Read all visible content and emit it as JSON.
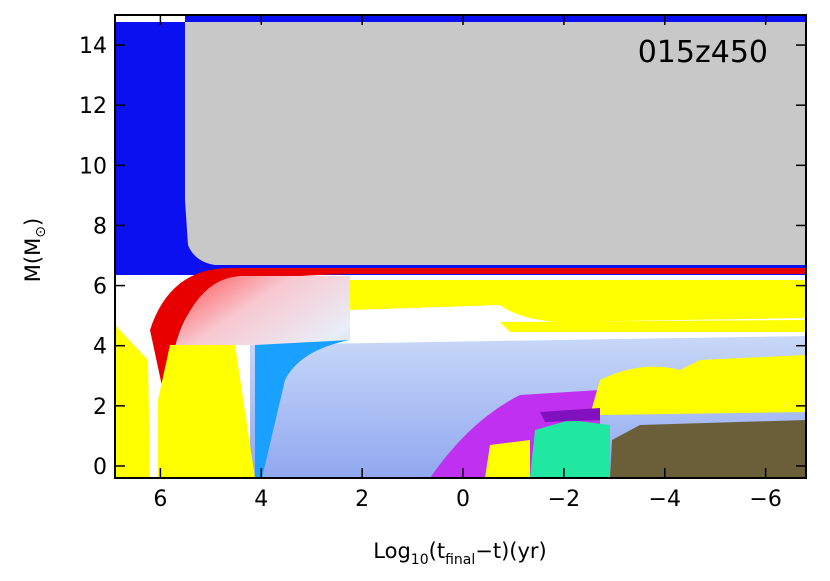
{
  "chart_data": {
    "type": "kippenhahn",
    "annotation": "015z450",
    "x_label_parts": [
      "Log",
      "10",
      "(t",
      "final",
      "−t)(yr)"
    ],
    "y_label_parts": [
      "M(M",
      "⊙",
      ")"
    ],
    "xlim": [
      6.9,
      -6.8
    ],
    "xticks": [
      6,
      4,
      2,
      0,
      {
        "value": -2,
        "label": "−2"
      },
      {
        "value": -4,
        "label": "−4"
      },
      {
        "value": -6,
        "label": "−6"
      }
    ],
    "ylim": [
      -0.4,
      15
    ],
    "yticks": [
      0,
      2,
      4,
      6,
      8,
      10,
      12,
      14
    ]
  }
}
